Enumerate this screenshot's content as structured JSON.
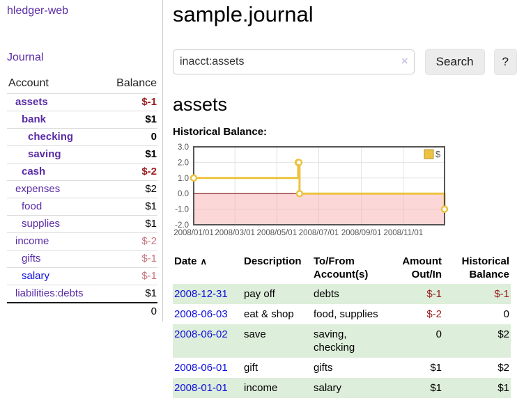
{
  "app": {
    "name": "hledger-web"
  },
  "sidebar": {
    "journal_link": "Journal",
    "accounts_table": {
      "col_account": "Account",
      "col_balance": "Balance",
      "rows": [
        {
          "name": "assets",
          "balance": "$-1",
          "level": 1,
          "bold": true,
          "bal_class": "neg-strong",
          "link_class": ""
        },
        {
          "name": "bank",
          "balance": "$1",
          "level": 2,
          "bold": true,
          "bal_class": "",
          "link_class": ""
        },
        {
          "name": "checking",
          "balance": "0",
          "level": 3,
          "bold": true,
          "bal_class": "",
          "link_class": ""
        },
        {
          "name": "saving",
          "balance": "$1",
          "level": 3,
          "bold": true,
          "bal_class": "",
          "link_class": ""
        },
        {
          "name": "cash",
          "balance": "$-2",
          "level": 2,
          "bold": true,
          "bal_class": "neg-strong",
          "link_class": ""
        },
        {
          "name": "expenses",
          "balance": "$2",
          "level": 1,
          "bold": false,
          "bal_class": "",
          "link_class": ""
        },
        {
          "name": "food",
          "balance": "$1",
          "level": 2,
          "bold": false,
          "bal_class": "",
          "link_class": ""
        },
        {
          "name": "supplies",
          "balance": "$1",
          "level": 2,
          "bold": false,
          "bal_class": "",
          "link_class": ""
        },
        {
          "name": "income",
          "balance": "$-2",
          "level": 1,
          "bold": false,
          "bal_class": "neg-soft",
          "link_class": ""
        },
        {
          "name": "gifts",
          "balance": "$-1",
          "level": 2,
          "bold": false,
          "bal_class": "neg-soft",
          "link_class": ""
        },
        {
          "name": "salary",
          "balance": "$-1",
          "level": 2,
          "bold": false,
          "bal_class": "neg-soft",
          "link_class": "blue"
        },
        {
          "name": "liabilities:debts",
          "balance": "$1",
          "level": 1,
          "bold": false,
          "bal_class": "",
          "link_class": ""
        }
      ],
      "total": "0"
    }
  },
  "main": {
    "title": "sample.journal",
    "search": {
      "value": "inacct:assets",
      "clear_icon": "×",
      "search_button": "Search",
      "help_button": "?"
    },
    "account_heading": "assets",
    "chart_title": "Historical Balance:"
  },
  "chart_data": {
    "type": "line",
    "step": true,
    "title": "Historical Balance of assets",
    "series": [
      {
        "name": "$",
        "color": "#EDC240",
        "points": [
          [
            "2008-01-01",
            1
          ],
          [
            "2008-06-01",
            2
          ],
          [
            "2008-06-02",
            2
          ],
          [
            "2008-06-03",
            0
          ],
          [
            "2008-12-31",
            -1
          ]
        ]
      }
    ],
    "xlim": [
      "2008-01-01",
      "2008-12-31"
    ],
    "ylim": [
      -2,
      3
    ],
    "y_ticks": [
      3,
      2,
      1,
      0,
      -1,
      -2
    ],
    "x_ticks": [
      {
        "date": "2008-01-01",
        "label": "2008/01/01"
      },
      {
        "date": "2008-03-01",
        "label": "2008/03/01"
      },
      {
        "date": "2008-05-01",
        "label": "2008/05/01"
      },
      {
        "date": "2008-07-01",
        "label": "2008/07/01"
      },
      {
        "date": "2008-09-01",
        "label": "2008/09/01"
      },
      {
        "date": "2008-11-01",
        "label": "2008/11/01"
      }
    ],
    "legend": {
      "label": "$",
      "position": "top-right"
    },
    "grid": true,
    "negative_region": true,
    "colors": {
      "line": "#EDC240",
      "marker_fill": "#ffffff",
      "negative_fill": "#fbd7d7",
      "zero_line": "#7d0d0d",
      "grid": "#e2e2e2",
      "border": "#545454",
      "tick_text": "#545454"
    }
  },
  "transactions": {
    "headers": {
      "date": "Date",
      "sort_indicator": "∧",
      "description": "Description",
      "accounts": "To/From Account(s)",
      "amount": "Amount Out/In",
      "balance": "Historical Balance"
    },
    "rows": [
      {
        "date": "2008-12-31",
        "description": "pay off",
        "accounts": "debts",
        "amount": "$-1",
        "balance": "$-1",
        "amount_neg": true,
        "balance_neg": true,
        "alt": true
      },
      {
        "date": "2008-06-03",
        "description": "eat & shop",
        "accounts": "food, supplies",
        "amount": "$-2",
        "balance": "0",
        "amount_neg": true,
        "balance_neg": false,
        "alt": false
      },
      {
        "date": "2008-06-02",
        "description": "save",
        "accounts": "saving, checking",
        "amount": "0",
        "balance": "$2",
        "amount_neg": false,
        "balance_neg": false,
        "alt": true
      },
      {
        "date": "2008-06-01",
        "description": "gift",
        "accounts": "gifts",
        "amount": "$1",
        "balance": "$2",
        "amount_neg": false,
        "balance_neg": false,
        "alt": false
      },
      {
        "date": "2008-01-01",
        "description": "income",
        "accounts": "salary",
        "amount": "$1",
        "balance": "$1",
        "amount_neg": false,
        "balance_neg": false,
        "alt": true
      }
    ]
  }
}
